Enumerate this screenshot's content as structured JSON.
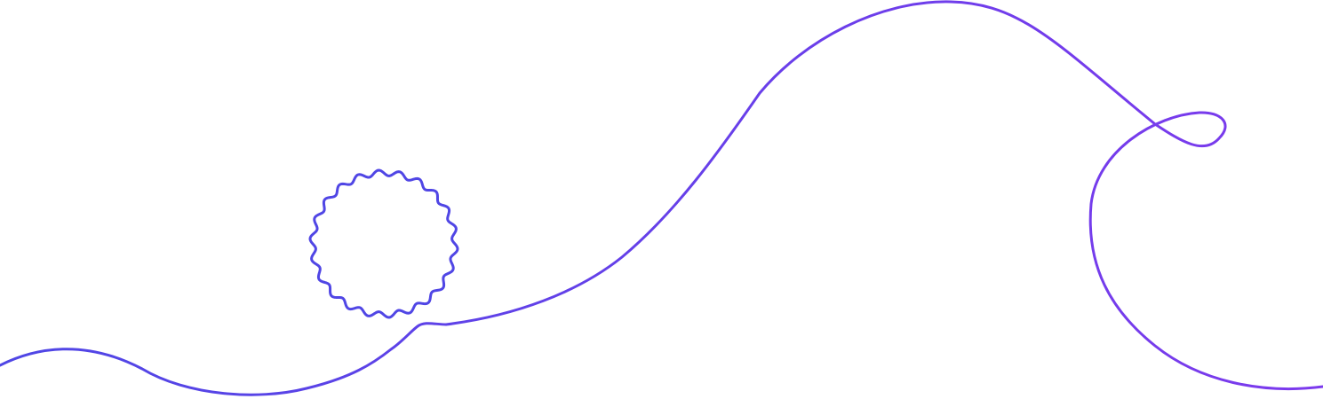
{
  "illustration": {
    "elements": [
      "flowing-line",
      "wavy-circle"
    ],
    "colors": {
      "background": "#ffffff",
      "line_start": "#4f46e5",
      "line_end": "#7c3aed"
    }
  }
}
